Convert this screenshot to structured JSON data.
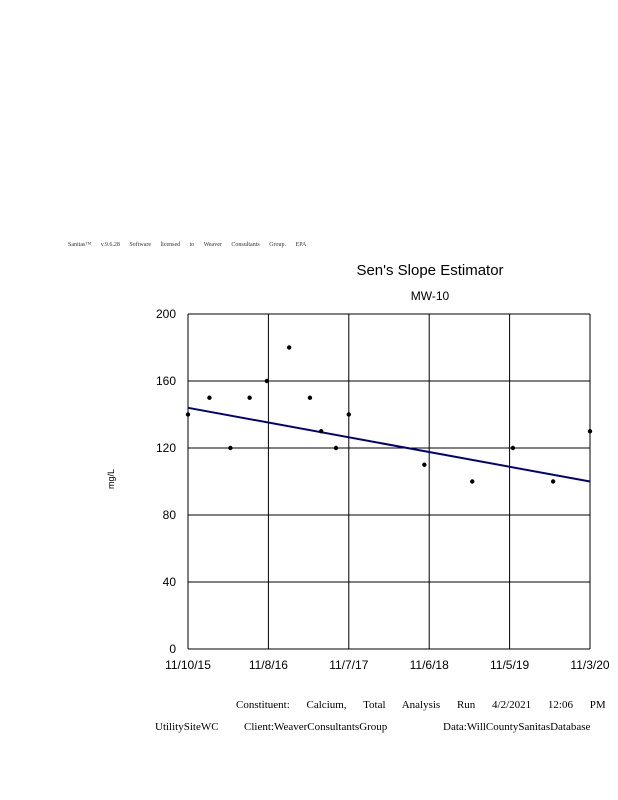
{
  "header_text": "Sanitas™ v.9.6.28 Software licensed to Weaver Consultants Group. EPA",
  "chart_data": {
    "type": "scatter",
    "title": "Sen's Slope Estimator",
    "subtitle": "MW-10",
    "xlabel": "",
    "ylabel": "mg/L",
    "x_tick_labels": [
      "11/10/15",
      "11/8/16",
      "11/7/17",
      "11/6/18",
      "11/5/19",
      "11/3/20"
    ],
    "y_tick_labels": [
      "0",
      "40",
      "80",
      "120",
      "160",
      "200"
    ],
    "ylim": [
      0,
      200
    ],
    "xlim": [
      "2015-11-10",
      "2020-11-03"
    ],
    "grid": true,
    "points": [
      {
        "x": "2015-11-10",
        "y": 140
      },
      {
        "x": "2016-02-15",
        "y": 150
      },
      {
        "x": "2016-05-20",
        "y": 120
      },
      {
        "x": "2016-08-15",
        "y": 150
      },
      {
        "x": "2016-11-01",
        "y": 160
      },
      {
        "x": "2017-02-10",
        "y": 180
      },
      {
        "x": "2017-05-15",
        "y": 150
      },
      {
        "x": "2017-07-05",
        "y": 130
      },
      {
        "x": "2017-09-10",
        "y": 120
      },
      {
        "x": "2017-11-07",
        "y": 140
      },
      {
        "x": "2018-10-15",
        "y": 110
      },
      {
        "x": "2019-05-20",
        "y": 100
      },
      {
        "x": "2019-11-20",
        "y": 120
      },
      {
        "x": "2020-05-20",
        "y": 100
      },
      {
        "x": "2020-11-03",
        "y": 130
      }
    ],
    "trend_line": {
      "start": {
        "x": "2015-11-10",
        "y": 144
      },
      "end": {
        "x": "2020-11-03",
        "y": 100
      }
    },
    "colors": {
      "points": "#000000",
      "trend": "#000080",
      "grid": "#000000"
    }
  },
  "footer": {
    "constituent": "Constituent: Calcium, Total Analysis Run 4/2/2021 12:06 PM",
    "site": "UtilitySiteWC",
    "client": "Client:WeaverConsultantsGroup",
    "data": "Data:WillCountySanitasDatabase"
  }
}
